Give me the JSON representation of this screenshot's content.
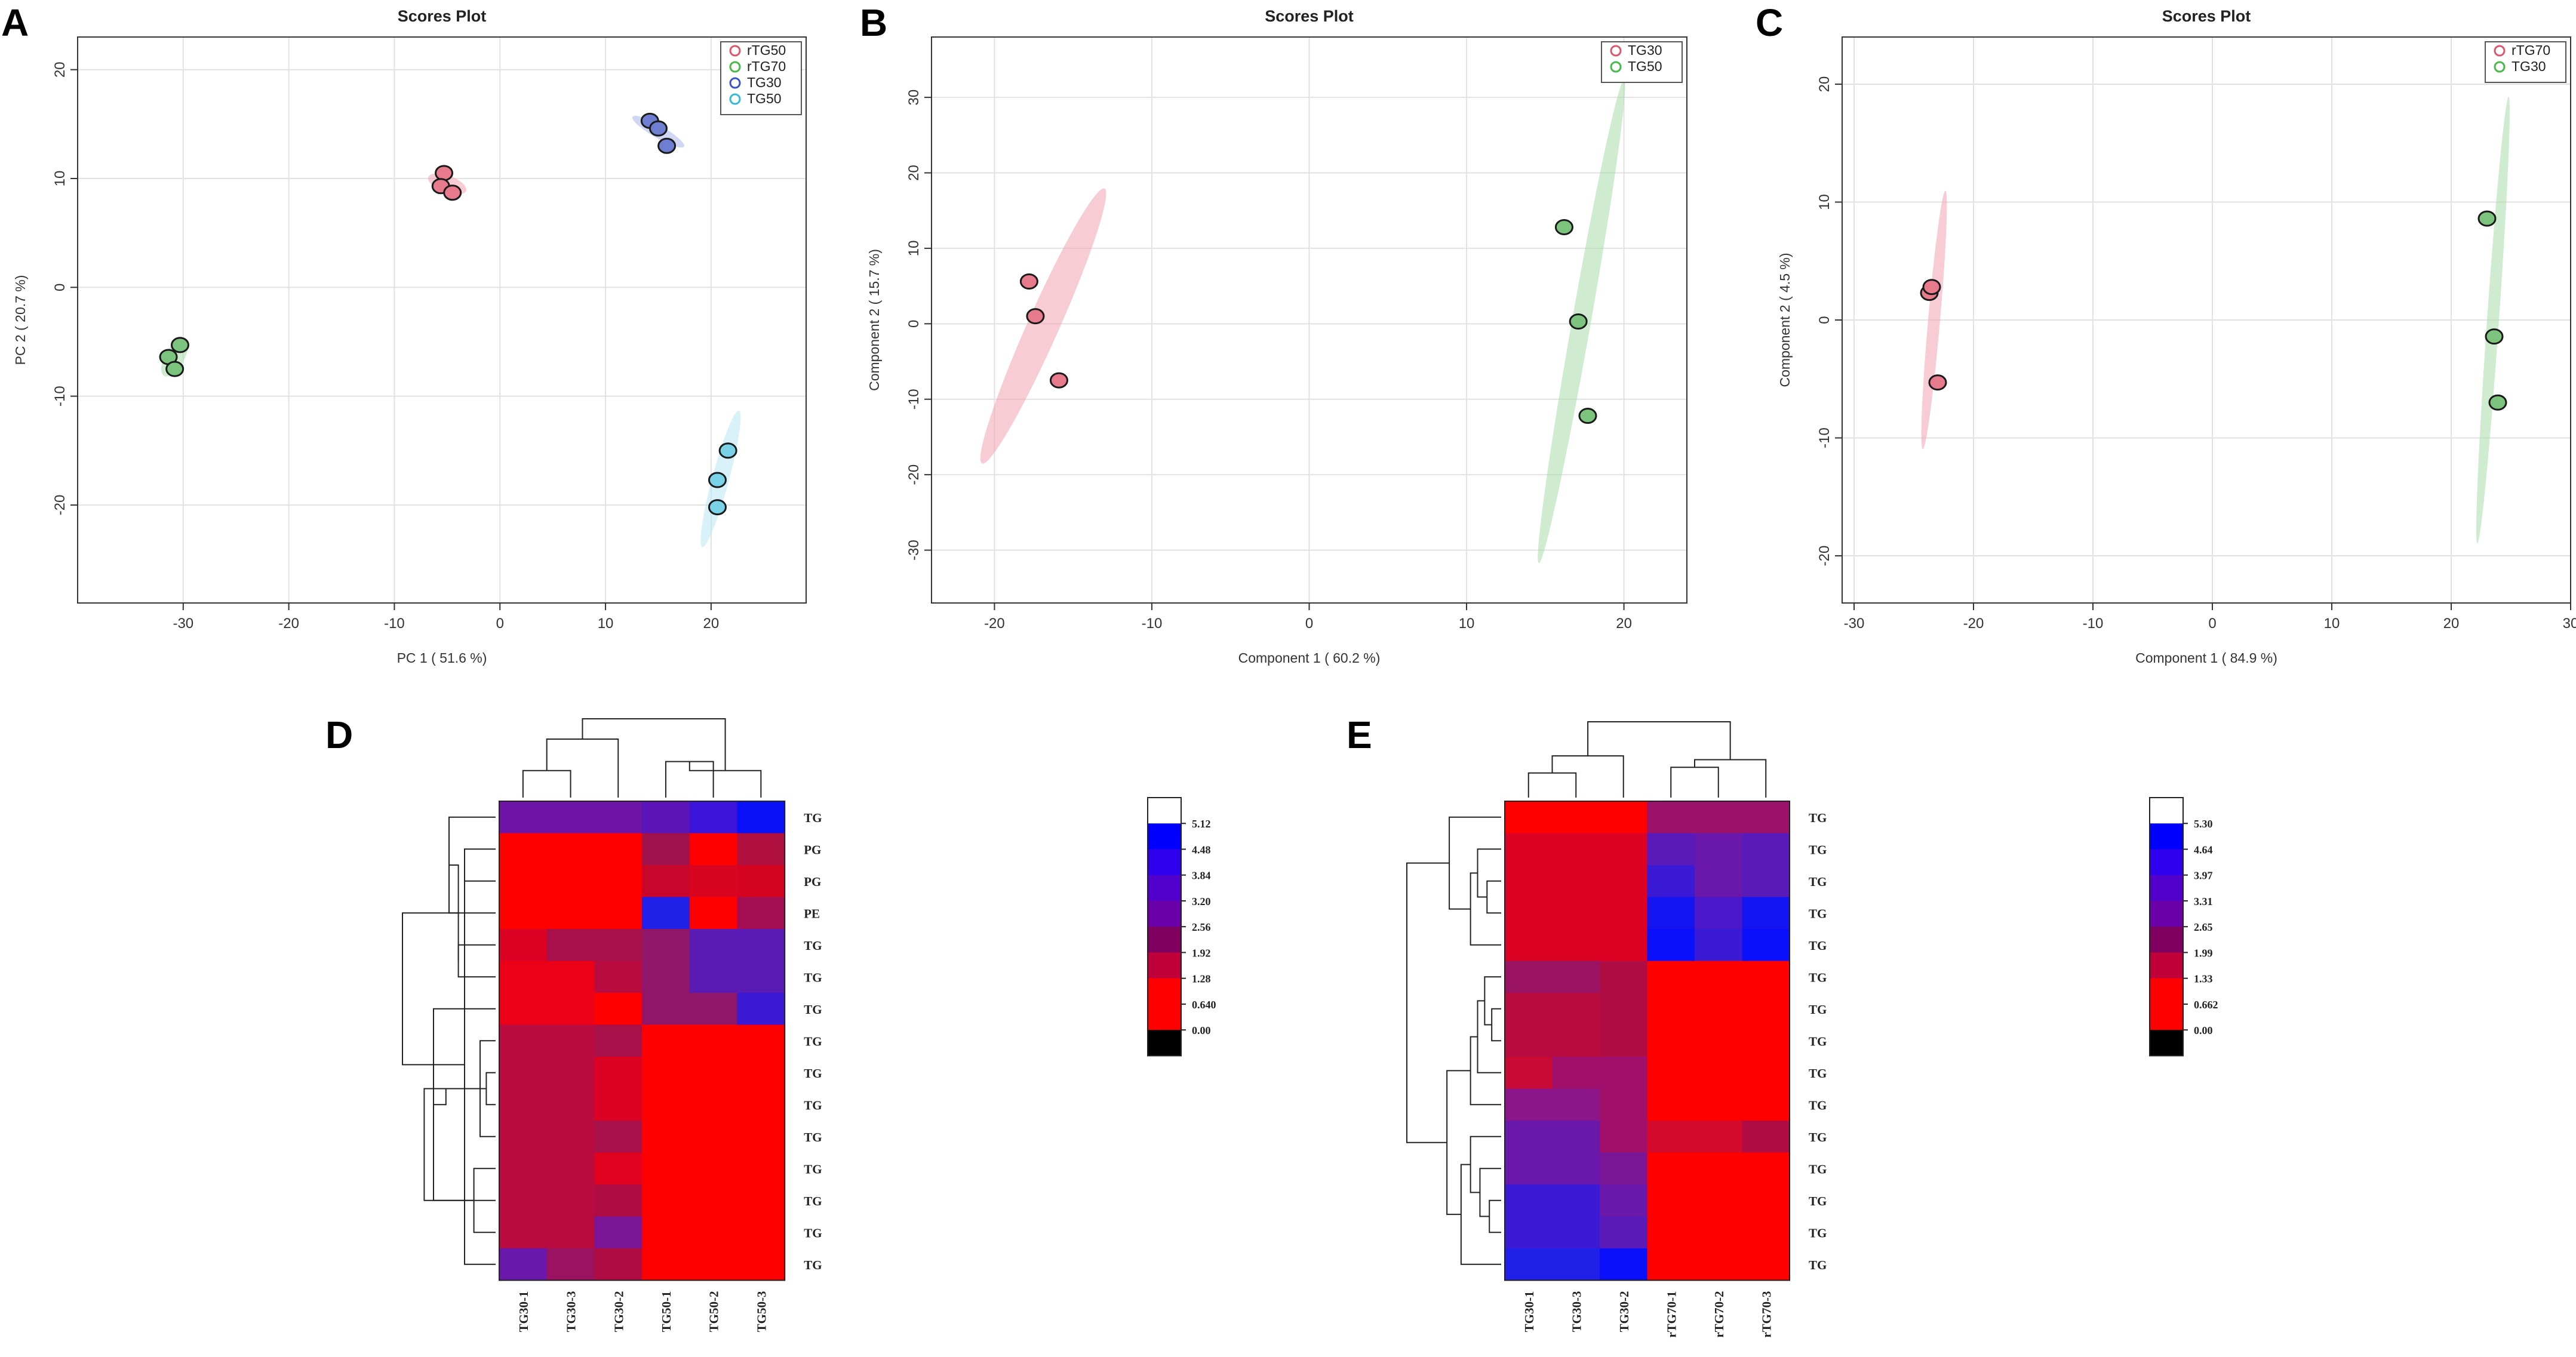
{
  "chart_data": [
    {
      "id": "A",
      "type": "scatter",
      "panel_letter": "A",
      "title": "Scores Plot",
      "xlabel": "PC 1 ( 51.6 %)",
      "ylabel": "PC 2 ( 20.7 %)",
      "xlim": [
        -40,
        29
      ],
      "ylim": [
        -29,
        23
      ],
      "xticks": [
        -30,
        -20,
        -10,
        0,
        10,
        20
      ],
      "yticks": [
        -20,
        -10,
        0,
        10,
        20
      ],
      "series": [
        {
          "name": "rTG50",
          "color": "#d9586e",
          "fill": "#e77b8c",
          "ellipse": "#f2a3b1",
          "points": [
            [
              -5.3,
              10.5
            ],
            [
              -5.6,
              9.3
            ],
            [
              -4.5,
              8.7
            ]
          ],
          "ellipse_geom": {
            "cx": -5.0,
            "cy": 9.5,
            "rx": 1.9,
            "ry": 0.8,
            "angle": -20
          }
        },
        {
          "name": "rTG70",
          "color": "#47b84a",
          "fill": "#7cc47e",
          "ellipse": "#a8dda9",
          "points": [
            [
              -30.3,
              -5.3
            ],
            [
              -31.4,
              -6.4
            ],
            [
              -30.8,
              -7.5
            ]
          ],
          "ellipse_geom": {
            "cx": -30.8,
            "cy": -6.4,
            "rx": 2.0,
            "ry": 0.9,
            "angle": 60
          }
        },
        {
          "name": "TG30",
          "color": "#3a53c6",
          "fill": "#6e7fd1",
          "ellipse": "#a9b7ea",
          "points": [
            [
              14.2,
              15.3
            ],
            [
              15.0,
              14.6
            ],
            [
              15.8,
              13.0
            ]
          ],
          "ellipse_geom": {
            "cx": 15.0,
            "cy": 14.3,
            "rx": 2.8,
            "ry": 0.6,
            "angle": -30
          }
        },
        {
          "name": "TG50",
          "color": "#35b8d6",
          "fill": "#7ad2e6",
          "ellipse": "#b9e6f2",
          "points": [
            [
              21.6,
              -15.0
            ],
            [
              20.6,
              -17.7
            ],
            [
              20.6,
              -20.2
            ]
          ],
          "ellipse_geom": {
            "cx": 20.9,
            "cy": -17.6,
            "rx": 6.5,
            "ry": 0.8,
            "angle": 75
          }
        }
      ],
      "legend": "top-right"
    },
    {
      "id": "B",
      "type": "scatter",
      "panel_letter": "B",
      "title": "Scores Plot",
      "xlabel": "Component 1 ( 60.2 %)",
      "ylabel": "Component 2 ( 15.7 %)",
      "xlim": [
        -24,
        24
      ],
      "ylim": [
        -37,
        38
      ],
      "xticks": [
        -20,
        -10,
        0,
        10,
        20
      ],
      "yticks": [
        -30,
        -20,
        -10,
        0,
        10,
        20,
        30
      ],
      "series": [
        {
          "name": "TG30",
          "color": "#d9586e",
          "fill": "#e77b8c",
          "ellipse": "#f2a3b1",
          "points": [
            [
              -17.8,
              5.6
            ],
            [
              -17.4,
              1.0
            ],
            [
              -15.9,
              -7.5
            ]
          ],
          "ellipse_geom": {
            "cx": -16.9,
            "cy": -0.3,
            "rx": 16.0,
            "ry": 1.0,
            "angle": 66
          }
        },
        {
          "name": "TG50",
          "color": "#47b84a",
          "fill": "#7cc47e",
          "ellipse": "#a8dda9",
          "points": [
            [
              16.2,
              12.8
            ],
            [
              17.1,
              0.3
            ],
            [
              17.7,
              -12.2
            ]
          ],
          "ellipse_geom": {
            "cx": 17.3,
            "cy": 0.3,
            "rx": 31.0,
            "ry": 0.6,
            "angle": 80
          }
        }
      ],
      "legend": "top-right"
    },
    {
      "id": "C",
      "type": "scatter",
      "panel_letter": "C",
      "title": "Scores Plot",
      "xlabel": "Component 1 ( 84.9 %)",
      "ylabel": "Component 2 ( 4.5 %)",
      "xlim": [
        -31,
        30
      ],
      "ylim": [
        -24,
        24
      ],
      "xticks": [
        -30,
        -20,
        -10,
        0,
        10,
        20,
        30
      ],
      "yticks": [
        -20,
        -10,
        0,
        10,
        20
      ],
      "series": [
        {
          "name": "rTG70",
          "color": "#d9586e",
          "fill": "#e77b8c",
          "ellipse": "#f2a3b1",
          "points": [
            [
              -23.7,
              2.3
            ],
            [
              -23.5,
              2.8
            ],
            [
              -23.0,
              -5.3
            ]
          ],
          "ellipse_geom": {
            "cx": -23.3,
            "cy": 0.0,
            "rx": 11.0,
            "ry": 0.5,
            "angle": 85
          }
        },
        {
          "name": "TG30",
          "color": "#47b84a",
          "fill": "#7cc47e",
          "ellipse": "#a8dda9",
          "points": [
            [
              23.0,
              8.6
            ],
            [
              23.6,
              -1.4
            ],
            [
              23.9,
              -7.0
            ]
          ],
          "ellipse_geom": {
            "cx": 23.5,
            "cy": 0.0,
            "rx": 19.0,
            "ry": 0.5,
            "angle": 86
          }
        }
      ],
      "legend": "top-right"
    },
    {
      "id": "D",
      "type": "heatmap",
      "panel_letter": "D",
      "columns": [
        "TG30-1",
        "TG30-3",
        "TG30-2",
        "TG50-1",
        "TG50-2",
        "TG50-3"
      ],
      "rows": [
        "TG",
        "PG",
        "PG",
        "PE",
        "TG",
        "TG",
        "TG",
        "TG",
        "TG",
        "TG",
        "TG",
        "TG",
        "TG",
        "TG",
        "TG"
      ],
      "colorbar_labels": [
        "5.12",
        "4.48",
        "3.84",
        "3.20",
        "2.56",
        "1.92",
        "1.28",
        "0.640",
        "0.00"
      ],
      "colorbar_colors": [
        "#ffffff",
        "#0000ff",
        "#2e00ee",
        "#5200cc",
        "#6a00a8",
        "#80005f",
        "#c0003a",
        "#ff0000",
        "#ff0000",
        "#000000"
      ],
      "values": [
        [
          "#6e14a8",
          "#6e14a8",
          "#6e14a8",
          "#5a14b8",
          "#3a14d8",
          "#0a10f8"
        ],
        [
          "#ff0000",
          "#ff0000",
          "#ff0000",
          "#a0124c",
          "#ff0000",
          "#b01040"
        ],
        [
          "#ff0000",
          "#ff0000",
          "#ff0000",
          "#c8062c",
          "#d80420",
          "#d40420"
        ],
        [
          "#ff0000",
          "#ff0000",
          "#ff0000",
          "#2020e8",
          "#ff0000",
          "#a40c54"
        ],
        [
          "#dc0224",
          "#a8104a",
          "#a8104a",
          "#90166a",
          "#5a1ab4",
          "#5a1ab4"
        ],
        [
          "#ec0018",
          "#ec0018",
          "#b80c40",
          "#90166a",
          "#5a1ab4",
          "#5a1ab4"
        ],
        [
          "#ec0018",
          "#ec0018",
          "#ff0000",
          "#90166a",
          "#90166a",
          "#3a1ad4"
        ],
        [
          "#b80c40",
          "#b80c40",
          "#a8104a",
          "#ff0000",
          "#ff0000",
          "#ff0000"
        ],
        [
          "#b80c40",
          "#b80c40",
          "#dc0224",
          "#ff0000",
          "#ff0000",
          "#ff0000"
        ],
        [
          "#b80c40",
          "#b80c40",
          "#dc0224",
          "#ff0000",
          "#ff0000",
          "#ff0000"
        ],
        [
          "#b80c40",
          "#b80c40",
          "#a8104a",
          "#ff0000",
          "#ff0000",
          "#ff0000"
        ],
        [
          "#b80c40",
          "#b80c40",
          "#e0021e",
          "#ff0000",
          "#ff0000",
          "#ff0000"
        ],
        [
          "#b80c40",
          "#b80c40",
          "#b00c44",
          "#ff0000",
          "#ff0000",
          "#ff0000"
        ],
        [
          "#b80c40",
          "#b80c40",
          "#7a1696",
          "#ff0000",
          "#ff0000",
          "#ff0000"
        ],
        [
          "#6a18ac",
          "#9a1260",
          "#b00c44",
          "#ff0000",
          "#ff0000",
          "#ff0000"
        ]
      ],
      "col_dendrogram": [
        [
          0,
          1,
          1.2
        ],
        [
          2,
          6,
          2.6
        ],
        [
          3,
          4,
          1.6
        ],
        [
          5,
          8,
          1.2
        ],
        [
          7,
          9,
          3.5
        ]
      ],
      "row_dendrogram": [
        [
          1,
          2,
          1.0
        ],
        [
          0,
          3,
          1.5
        ],
        [
          4,
          5,
          1.2
        ],
        [
          6,
          12,
          2.0
        ],
        [
          8,
          9,
          0.3
        ],
        [
          7,
          10,
          0.5
        ],
        [
          11,
          13,
          0.7
        ],
        [
          14,
          15,
          1.0
        ],
        [
          16,
          17,
          1.2
        ],
        [
          18,
          19,
          1.6
        ],
        [
          20,
          21,
          2.3
        ],
        [
          22,
          23,
          3.0
        ]
      ]
    },
    {
      "id": "E",
      "type": "heatmap",
      "panel_letter": "E",
      "columns": [
        "TG30-1",
        "TG30-3",
        "TG30-2",
        "rTG70-1",
        "rTG70-2",
        "rTG70-3"
      ],
      "rows": [
        "TG",
        "TG",
        "TG",
        "TG",
        "TG",
        "TG",
        "TG",
        "TG",
        "TG",
        "TG",
        "TG",
        "TG",
        "TG",
        "TG",
        "TG"
      ],
      "colorbar_labels": [
        "5.30",
        "4.64",
        "3.97",
        "3.31",
        "2.65",
        "1.99",
        "1.33",
        "0.662",
        "0.00"
      ],
      "colorbar_colors": [
        "#ffffff",
        "#0000ff",
        "#2e00ee",
        "#5200cc",
        "#6a00a8",
        "#80005f",
        "#c0003a",
        "#ff0000",
        "#ff0000",
        "#000000"
      ],
      "values": [
        [
          "#ff0000",
          "#ff0000",
          "#ff0000",
          "#9a126a",
          "#9a126a",
          "#9a126a"
        ],
        [
          "#dc0224",
          "#dc0224",
          "#dc0224",
          "#5a1ab8",
          "#6a18ac",
          "#5a1ab8"
        ],
        [
          "#dc0224",
          "#dc0224",
          "#dc0224",
          "#3a1ad4",
          "#6a18ac",
          "#5a1ab8"
        ],
        [
          "#dc0224",
          "#dc0224",
          "#dc0224",
          "#1414f0",
          "#4a18c8",
          "#1414f0"
        ],
        [
          "#dc0224",
          "#dc0224",
          "#dc0224",
          "#0a10fa",
          "#3a1ad4",
          "#0a10fa"
        ],
        [
          "#9a1262",
          "#9a1262",
          "#b00c44",
          "#ff0000",
          "#ff0000",
          "#ff0000"
        ],
        [
          "#b80c40",
          "#b80c40",
          "#b00c44",
          "#ff0000",
          "#ff0000",
          "#ff0000"
        ],
        [
          "#b80c40",
          "#b80c40",
          "#b00c44",
          "#ff0000",
          "#ff0000",
          "#ff0000"
        ],
        [
          "#c80a34",
          "#a0106a",
          "#a0106a",
          "#ff0000",
          "#ff0000",
          "#ff0000"
        ],
        [
          "#8a168a",
          "#8a168a",
          "#a0106a",
          "#ff0000",
          "#ff0000",
          "#ff0000"
        ],
        [
          "#6a18ac",
          "#6a18ac",
          "#a0106a",
          "#d40a2c",
          "#d40a2c",
          "#b00c44"
        ],
        [
          "#6a18ac",
          "#6a18ac",
          "#7a1696",
          "#ff0000",
          "#ff0000",
          "#ff0000"
        ],
        [
          "#3a1ad4",
          "#3a1ad4",
          "#6a18ac",
          "#ff0000",
          "#ff0000",
          "#ff0000"
        ],
        [
          "#3a1ad4",
          "#3a1ad4",
          "#5a1ab8",
          "#ff0000",
          "#ff0000",
          "#ff0000"
        ],
        [
          "#2020e8",
          "#2020e8",
          "#0a10fa",
          "#ff0000",
          "#ff0000",
          "#ff0000"
        ]
      ],
      "col_dendrogram": [
        [
          0,
          1,
          1.3
        ],
        [
          2,
          6,
          2.2
        ],
        [
          3,
          4,
          1.6
        ],
        [
          5,
          8,
          2.0
        ],
        [
          7,
          9,
          4.0
        ]
      ],
      "row_dendrogram": [
        [
          2,
          3,
          0.6
        ],
        [
          1,
          15,
          1.0
        ],
        [
          4,
          16,
          1.3
        ],
        [
          0,
          17,
          2.2
        ],
        [
          6,
          7,
          0.4
        ],
        [
          5,
          19,
          0.7
        ],
        [
          8,
          20,
          1.0
        ],
        [
          9,
          21,
          1.3
        ],
        [
          12,
          13,
          0.5
        ],
        [
          11,
          23,
          0.9
        ],
        [
          10,
          24,
          1.3
        ],
        [
          14,
          25,
          1.7
        ],
        [
          22,
          26,
          2.3
        ],
        [
          18,
          27,
          4.0
        ]
      ]
    }
  ]
}
